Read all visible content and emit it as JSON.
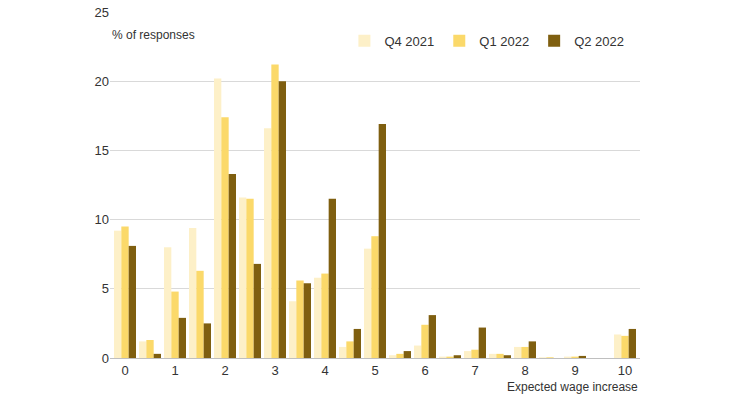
{
  "chart_data": {
    "type": "bar",
    "y_label": "% of responses",
    "x_label": "Expected wage increase",
    "categories": [
      "0",
      null,
      "1",
      null,
      "2",
      null,
      "3",
      null,
      "4",
      null,
      "5",
      null,
      "6",
      null,
      "7",
      null,
      "8",
      null,
      "9",
      null,
      "10"
    ],
    "series": [
      {
        "name": "Q4 2021",
        "color": "#fdf0c8",
        "values": [
          9.2,
          1.2,
          8.0,
          9.4,
          20.2,
          11.6,
          16.6,
          4.1,
          5.8,
          0.8,
          7.9,
          0.2,
          0.9,
          0.1,
          0.5,
          0.3,
          0.8,
          0.05,
          0.1,
          0,
          1.7
        ]
      },
      {
        "name": "Q1 2022",
        "color": "#fbd96a",
        "values": [
          9.5,
          1.3,
          4.8,
          6.3,
          17.4,
          11.5,
          21.2,
          5.6,
          6.1,
          1.2,
          8.8,
          0.3,
          2.4,
          0.1,
          0.6,
          0.3,
          0.8,
          0.05,
          0.1,
          0,
          1.6
        ]
      },
      {
        "name": "Q2 2022",
        "color": "#7f5f10",
        "values": [
          8.1,
          0.3,
          2.9,
          2.5,
          13.3,
          6.8,
          20.0,
          5.4,
          11.5,
          2.1,
          16.9,
          0.5,
          3.1,
          0.2,
          2.2,
          0.2,
          1.2,
          0,
          0.15,
          0,
          2.1
        ]
      }
    ],
    "ylim": [
      0,
      25
    ],
    "yticks": [
      0,
      5,
      10,
      15,
      20,
      25
    ],
    "grid": true,
    "legend": "top right"
  }
}
